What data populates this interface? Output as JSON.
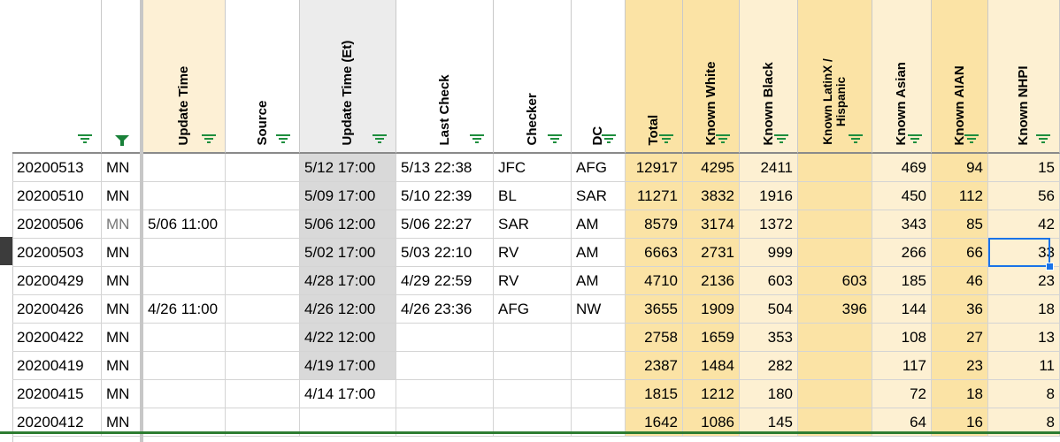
{
  "headers": [
    {
      "key": "date",
      "label": ""
    },
    {
      "key": "state",
      "label": ""
    },
    {
      "key": "update_time",
      "label": "Update Time"
    },
    {
      "key": "source",
      "label": "Source"
    },
    {
      "key": "update_time_et",
      "label": "Update Time (Et)"
    },
    {
      "key": "last_check",
      "label": "Last Check"
    },
    {
      "key": "checker",
      "label": "Checker"
    },
    {
      "key": "dc",
      "label": "DC"
    },
    {
      "key": "total",
      "label": "Total"
    },
    {
      "key": "known_white",
      "label": "Known White"
    },
    {
      "key": "known_black",
      "label": "Known Black"
    },
    {
      "key": "known_latinx",
      "label": "Known LatinX /\nHispanic"
    },
    {
      "key": "known_asian",
      "label": "Known Asian"
    },
    {
      "key": "known_aian",
      "label": "Known AIAN"
    },
    {
      "key": "known_nhpi",
      "label": "Known NHPI"
    }
  ],
  "rows": [
    [
      "20200513",
      "MN",
      "",
      "",
      "5/12 17:00",
      "5/13 22:38",
      "JFC",
      "AFG",
      "12917",
      "4295",
      "2411",
      "",
      "469",
      "94",
      "15"
    ],
    [
      "20200510",
      "MN",
      "",
      "",
      "5/09 17:00",
      "5/10 22:39",
      "BL",
      "SAR",
      "11271",
      "3832",
      "1916",
      "",
      "450",
      "112",
      "56"
    ],
    [
      "20200506",
      "MN",
      "5/06 11:00",
      "",
      "5/06 12:00",
      "5/06 22:27",
      "SAR",
      "AM",
      "8579",
      "3174",
      "1372",
      "",
      "343",
      "85",
      "42"
    ],
    [
      "20200503",
      "MN",
      "",
      "",
      "5/02 17:00",
      "5/03 22:10",
      "RV",
      "AM",
      "6663",
      "2731",
      "999",
      "",
      "266",
      "66",
      "33"
    ],
    [
      "20200429",
      "MN",
      "",
      "",
      "4/28 17:00",
      "4/29 22:59",
      "RV",
      "AM",
      "4710",
      "2136",
      "603",
      "603",
      "185",
      "46",
      "23"
    ],
    [
      "20200426",
      "MN",
      "4/26 11:00",
      "",
      "4/26 12:00",
      "4/26 23:36",
      "AFG",
      "NW",
      "3655",
      "1909",
      "504",
      "396",
      "144",
      "36",
      "18"
    ],
    [
      "20200422",
      "MN",
      "",
      "",
      "4/22 12:00",
      "",
      "",
      "",
      "2758",
      "1659",
      "353",
      "",
      "108",
      "27",
      "13"
    ],
    [
      "20200419",
      "MN",
      "",
      "",
      "4/19 17:00",
      "",
      "",
      "",
      "2387",
      "1484",
      "282",
      "",
      "117",
      "23",
      "11"
    ],
    [
      "20200415",
      "MN",
      "",
      "",
      "4/14 17:00",
      "",
      "",
      "",
      "1815",
      "1212",
      "180",
      "",
      "72",
      "18",
      "8"
    ],
    [
      "20200412",
      "MN",
      "",
      "",
      "",
      "",
      "",
      "",
      "1642",
      "1086",
      "145",
      "",
      "64",
      "16",
      "8"
    ]
  ],
  "colors": {
    "header_default": "#ffffff",
    "header_update_time": "#fdf0d5",
    "header_update_time_et": "#ececec",
    "header_yellow": "#fbe3a5",
    "header_yellow_light": "#fdf0d2",
    "cell_grey": "#d9d9d9",
    "cell_yellow": "#fbe3a5",
    "cell_yellow_light": "#fdf0d2",
    "filter_active": "#188038",
    "filter_icon": "#1e8e3e",
    "selection": "#1a73e8"
  }
}
